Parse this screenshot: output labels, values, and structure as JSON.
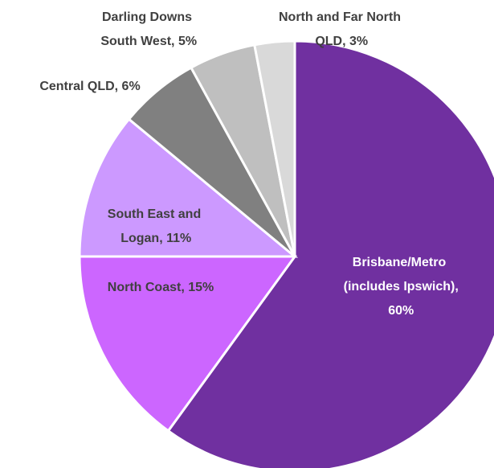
{
  "chart_data": {
    "type": "pie",
    "values": [
      60,
      15,
      11,
      6,
      5,
      3
    ],
    "value_labels": [
      "Brisbane/Metro (includes Ipswich), 60%",
      "North Coast, 15%",
      "South East and Logan, 11%",
      "Central QLD, 6%",
      "Darling Downs South West, 5%",
      "North and Far North QLD, 3%"
    ],
    "colors": [
      "#7030a0",
      "#cc66ff",
      "#cc99ff",
      "#808080",
      "#bfbfbf",
      "#d9d9d9"
    ]
  }
}
